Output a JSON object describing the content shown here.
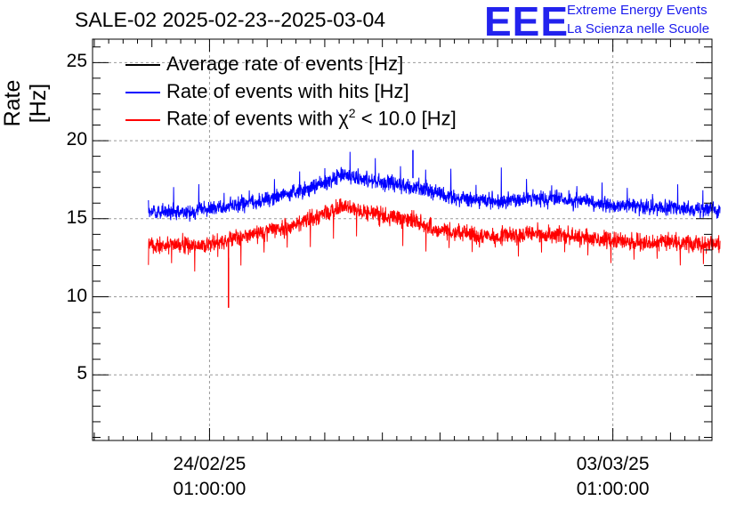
{
  "chart_data": {
    "type": "line",
    "title": "SALE-02 2025-02-23--2025-03-04",
    "xlabel": "",
    "ylabel": "Rate [Hz]",
    "ylim": [
      0.8,
      26.5
    ],
    "y_ticks": [
      5,
      10,
      15,
      20,
      25
    ],
    "y_tick_labels": [
      "5",
      "10",
      "15",
      "20",
      "25"
    ],
    "x_ticks": [
      {
        "date": "24/02/25",
        "time": "01:00:00",
        "day_index": 1
      },
      {
        "date": "03/03/25",
        "time": "01:00:00",
        "day_index": 8
      }
    ],
    "x_range_days": [
      -1.03,
      9.72
    ],
    "data_range_days": [
      -0.06,
      9.86
    ],
    "grid": true,
    "legend_position": "top-left",
    "series": [
      {
        "name": "Average rate of events [Hz]",
        "color": "#000000",
        "style": "line"
      },
      {
        "name": "Rate of events with hits [Hz]",
        "color": "#0000ff",
        "style": "noisy-band",
        "keypoints": {
          "day": [
            -0.06,
            0.5,
            1.0,
            1.5,
            2.0,
            2.5,
            3.0,
            3.3,
            4.0,
            4.5,
            5.0,
            5.5,
            6.0,
            6.5,
            7.0,
            7.5,
            8.0,
            8.5,
            9.0,
            9.86
          ],
          "rate": [
            15.4,
            15.4,
            15.6,
            15.9,
            16.3,
            16.7,
            17.3,
            17.8,
            17.3,
            17.1,
            16.6,
            16.2,
            16.1,
            16.3,
            16.3,
            16.1,
            15.8,
            15.8,
            15.7,
            15.6
          ]
        },
        "noise_amplitude": 0.75,
        "peak_max": 19.4
      },
      {
        "name": "Rate of events with χ² < 10.0 [Hz]",
        "color": "#ff0000",
        "style": "noisy-band",
        "keypoints": {
          "day": [
            -0.06,
            0.5,
            1.0,
            1.5,
            2.0,
            2.5,
            3.0,
            3.3,
            4.0,
            4.5,
            5.0,
            5.5,
            6.0,
            6.5,
            7.0,
            7.5,
            8.0,
            8.5,
            9.0,
            9.86
          ],
          "rate": [
            13.3,
            13.3,
            13.4,
            13.8,
            14.2,
            14.6,
            15.3,
            15.8,
            15.2,
            14.9,
            14.3,
            14.0,
            13.8,
            14.0,
            14.0,
            13.8,
            13.6,
            13.5,
            13.5,
            13.4
          ]
        },
        "noise_amplitude": 0.8,
        "dip": {
          "day": 1.33,
          "rate": 9.3
        }
      }
    ]
  },
  "legend": {
    "avg_label": "Average rate of events [Hz]",
    "hits_label": "Rate of events with hits [Hz]",
    "chi_prefix": "Rate of events with ",
    "chi_symbol": "χ",
    "chi_exp": "2",
    "chi_suffix": " < 10.0 [Hz]"
  },
  "logo": {
    "text": "EEE",
    "line1": "Extreme Energy Events",
    "line2": "La Scienza nelle Scuole",
    "color": "#1a1aee"
  }
}
